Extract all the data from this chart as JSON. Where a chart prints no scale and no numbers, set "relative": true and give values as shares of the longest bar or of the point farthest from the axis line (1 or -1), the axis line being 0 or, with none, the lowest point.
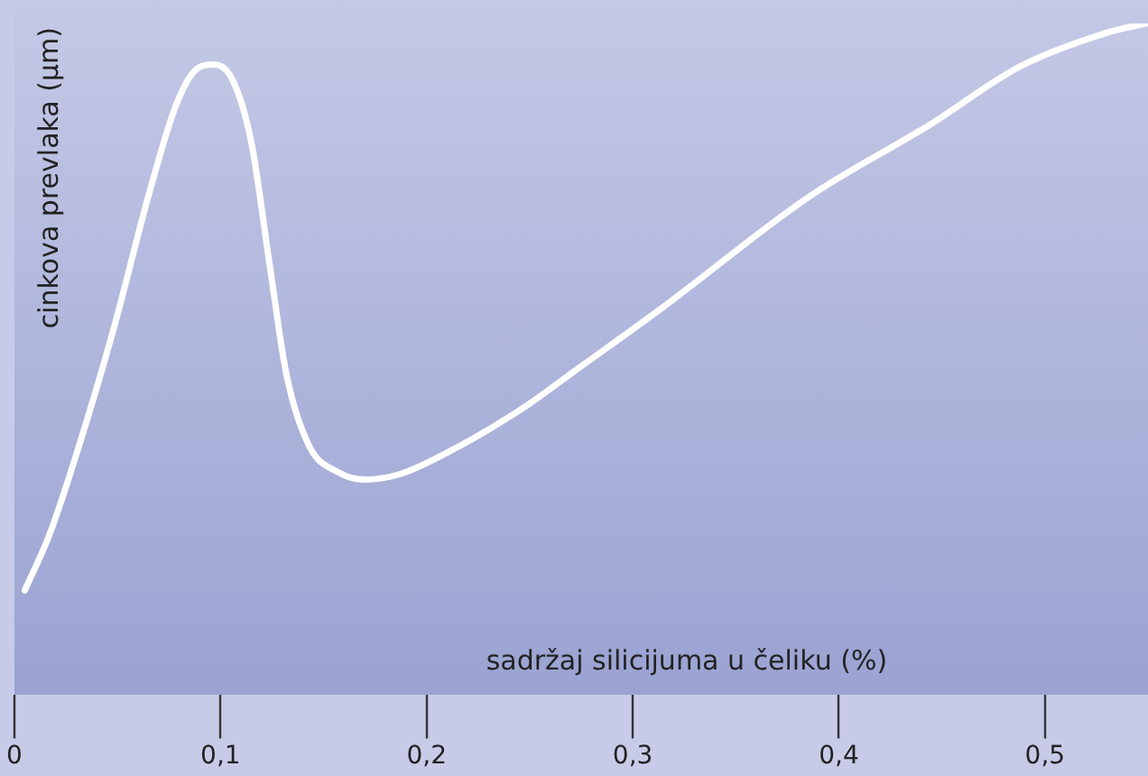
{
  "chart_data": {
    "type": "line",
    "relative": true,
    "xlabel": "sadržaj silicijuma u čeliku (%)",
    "ylabel": "cinkova prevlaka (µm)",
    "xlim": [
      0,
      0.55
    ],
    "xticks": [
      {
        "value": 0,
        "label": "0"
      },
      {
        "value": 0.1,
        "label": "0,1"
      },
      {
        "value": 0.2,
        "label": "0,2"
      },
      {
        "value": 0.3,
        "label": "0,3"
      },
      {
        "value": 0.4,
        "label": "0,4"
      },
      {
        "value": 0.5,
        "label": "0,5"
      }
    ],
    "grid": false,
    "legend": false,
    "marker": "none",
    "line_style": "solid",
    "series": [
      {
        "color": "#ffffff",
        "x": [
          0.005,
          0.017,
          0.03,
          0.048,
          0.065,
          0.078,
          0.087,
          0.097,
          0.106,
          0.115,
          0.124,
          0.132,
          0.143,
          0.157,
          0.17,
          0.187,
          0.213,
          0.248,
          0.272,
          0.314,
          0.386,
          0.444,
          0.488,
          0.531,
          0.549
        ],
        "values": [
          0.156,
          0.239,
          0.358,
          0.544,
          0.743,
          0.875,
          0.928,
          0.939,
          0.915,
          0.822,
          0.637,
          0.477,
          0.371,
          0.332,
          0.321,
          0.329,
          0.366,
          0.43,
          0.483,
          0.576,
          0.743,
          0.849,
          0.936,
          0.987,
          1
        ]
      }
    ]
  }
}
